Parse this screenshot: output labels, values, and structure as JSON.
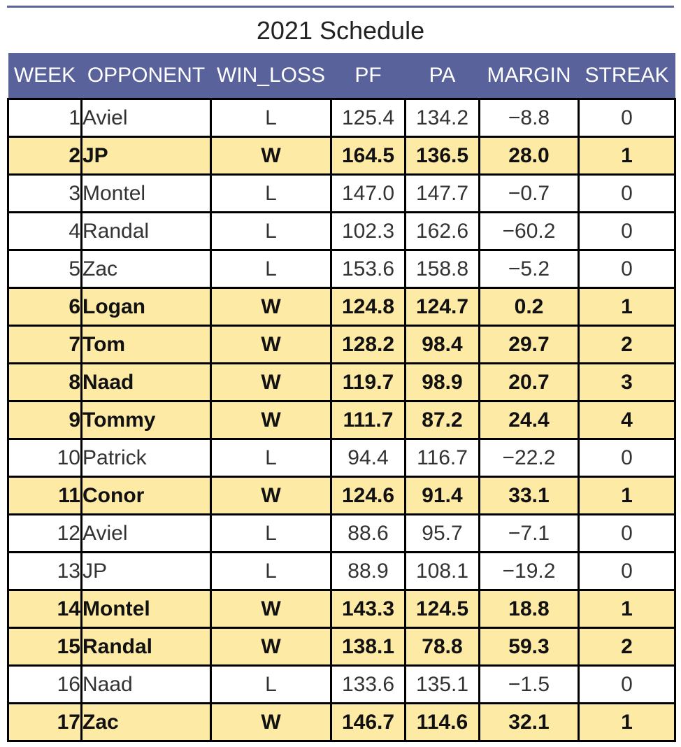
{
  "title": "2021 Schedule",
  "chart_data": {
    "type": "table",
    "title": "2021 Schedule",
    "columns": [
      "WEEK",
      "OPPONENT",
      "WIN_LOSS",
      "PF",
      "PA",
      "MARGIN",
      "STREAK"
    ],
    "rows": [
      [
        "1",
        "Aviel",
        "L",
        "125.4",
        "134.2",
        "−8.8",
        "0"
      ],
      [
        "2",
        "JP",
        "W",
        "164.5",
        "136.5",
        "28.0",
        "1"
      ],
      [
        "3",
        "Montel",
        "L",
        "147.0",
        "147.7",
        "−0.7",
        "0"
      ],
      [
        "4",
        "Randal",
        "L",
        "102.3",
        "162.6",
        "−60.2",
        "0"
      ],
      [
        "5",
        "Zac",
        "L",
        "153.6",
        "158.8",
        "−5.2",
        "0"
      ],
      [
        "6",
        "Logan",
        "W",
        "124.8",
        "124.7",
        "0.2",
        "1"
      ],
      [
        "7",
        "Tom",
        "W",
        "128.2",
        "98.4",
        "29.7",
        "2"
      ],
      [
        "8",
        "Naad",
        "W",
        "119.7",
        "98.9",
        "20.7",
        "3"
      ],
      [
        "9",
        "Tommy",
        "W",
        "111.7",
        "87.2",
        "24.4",
        "4"
      ],
      [
        "10",
        "Patrick",
        "L",
        "94.4",
        "116.7",
        "−22.2",
        "0"
      ],
      [
        "11",
        "Conor",
        "W",
        "124.6",
        "91.4",
        "33.1",
        "1"
      ],
      [
        "12",
        "Aviel",
        "L",
        "88.6",
        "95.7",
        "−7.1",
        "0"
      ],
      [
        "13",
        "JP",
        "L",
        "88.9",
        "108.1",
        "−19.2",
        "0"
      ],
      [
        "14",
        "Montel",
        "W",
        "143.3",
        "124.5",
        "18.8",
        "1"
      ],
      [
        "15",
        "Randal",
        "W",
        "138.1",
        "78.8",
        "59.3",
        "2"
      ],
      [
        "16",
        "Naad",
        "L",
        "133.6",
        "135.1",
        "−1.5",
        "0"
      ],
      [
        "17",
        "Zac",
        "W",
        "146.7",
        "114.6",
        "32.1",
        "1"
      ]
    ],
    "header_color": "#5a629b",
    "win_row_color": "#fdeaa5",
    "loss_row_color": "#ffffff"
  }
}
